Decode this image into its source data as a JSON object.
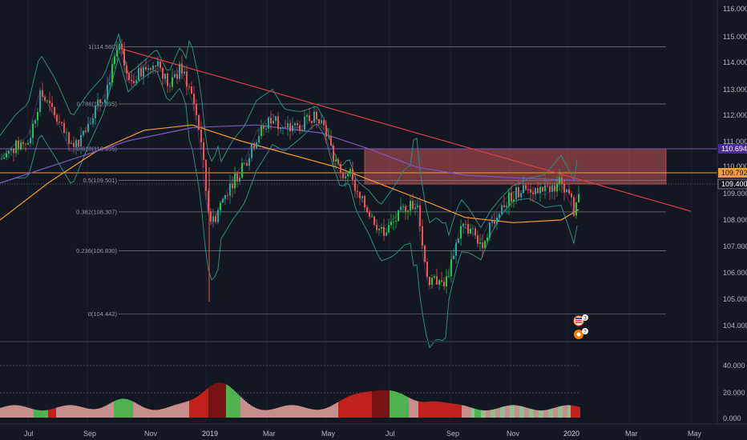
{
  "colors": {
    "background": "#131722",
    "grid": "#1e222d",
    "axis_text": "#b2b5be",
    "candle_up": "#26a69a",
    "candle_up_bright": "#0ed145",
    "candle_down": "#ef5350",
    "bollinger": "#2c8a80",
    "ma_orange": "#f39b2f",
    "ma_purple": "#7e57c2",
    "trendline": "#d84040",
    "zone_fill": "#c25656",
    "hline_orange": "#f59d2f",
    "hline_purple": "#7e57c2",
    "fib_line": "#787b86",
    "osc_green": "#4fb14f",
    "osc_red": "#c0211f",
    "osc_pink": "#c78e8e",
    "osc_dark": "#7a1414"
  },
  "price_axis": {
    "labels": [
      "116.000",
      "115.000",
      "114.000",
      "113.000",
      "112.000",
      "111.000",
      "110.000",
      "109.000",
      "108.000",
      "107.000",
      "106.000",
      "105.000",
      "104.000"
    ]
  },
  "price_tags": [
    {
      "value": "110.694",
      "bg": "#4a2b97",
      "fg": "#ffffff"
    },
    {
      "value": "109.792",
      "bg": "#f59d2f",
      "fg": "#131722"
    },
    {
      "value": "109.400",
      "bg": "#131722",
      "fg": "#ffffff"
    }
  ],
  "osc_axis": {
    "labels": [
      "40.000",
      "20.000",
      "0.000"
    ]
  },
  "time_axis": {
    "labels": [
      "Jul",
      "Sep",
      "Nov",
      "2019",
      "Mar",
      "May",
      "Jul",
      "Sep",
      "Nov",
      "2020",
      "Mar",
      "May"
    ]
  },
  "fib_levels": [
    {
      "text": "1(114.560)",
      "price": 114.56
    },
    {
      "text": "0.786(112.395)",
      "price": 112.395
    },
    {
      "text": "0.618(110.695)",
      "price": 110.695
    },
    {
      "text": "0.5(109.501)",
      "price": 109.501
    },
    {
      "text": "0.382(108.307)",
      "price": 108.307
    },
    {
      "text": "0.236(106.830)",
      "price": 106.83
    },
    {
      "text": "0(104.442)",
      "price": 104.442
    }
  ],
  "event_badges": [
    {
      "icon": "us-flag-icon",
      "count": "3"
    },
    {
      "icon": "dividend-icon",
      "count": "7"
    }
  ]
}
